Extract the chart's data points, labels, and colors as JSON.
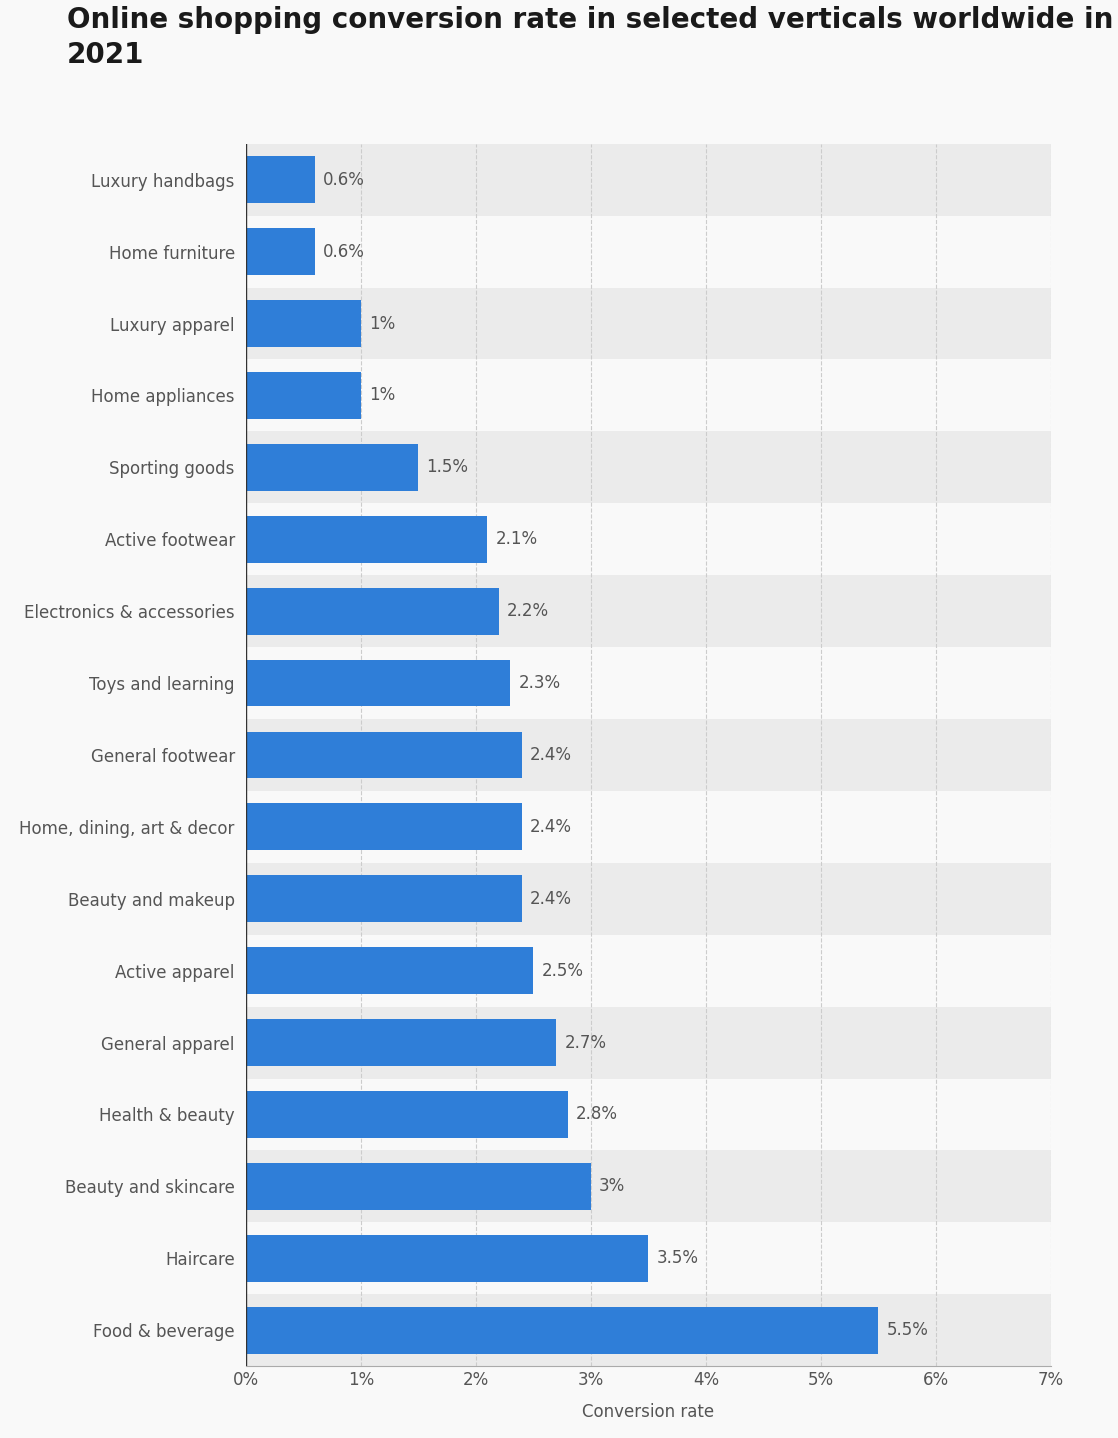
{
  "title": "Online shopping conversion rate in selected verticals worldwide in\n2021",
  "categories": [
    "Luxury handbags",
    "Home furniture",
    "Luxury apparel",
    "Home appliances",
    "Sporting goods",
    "Active footwear",
    "Electronics & accessories",
    "Toys and learning",
    "General footwear",
    "Home, dining, art & decor",
    "Beauty and makeup",
    "Active apparel",
    "General apparel",
    "Health & beauty",
    "Beauty and skincare",
    "Haircare",
    "Food & beverage"
  ],
  "values": [
    0.6,
    0.6,
    1.0,
    1.0,
    1.5,
    2.1,
    2.2,
    2.3,
    2.4,
    2.4,
    2.4,
    2.5,
    2.7,
    2.8,
    3.0,
    3.5,
    5.5
  ],
  "labels": [
    "0.6%",
    "0.6%",
    "1%",
    "1%",
    "1.5%",
    "2.1%",
    "2.2%",
    "2.3%",
    "2.4%",
    "2.4%",
    "2.4%",
    "2.5%",
    "2.7%",
    "2.8%",
    "3%",
    "3.5%",
    "5.5%"
  ],
  "bar_color": "#2f7ed8",
  "background_color": "#f9f9f9",
  "row_colors": [
    "#ebebeb",
    "#f9f9f9"
  ],
  "xlabel": "Conversion rate",
  "xlim": [
    0,
    7
  ],
  "xticks": [
    0,
    1,
    2,
    3,
    4,
    5,
    6,
    7
  ],
  "xtick_labels": [
    "0%",
    "1%",
    "2%",
    "3%",
    "4%",
    "5%",
    "6%",
    "7%"
  ],
  "title_fontsize": 20,
  "label_fontsize": 12,
  "tick_fontsize": 12,
  "xlabel_fontsize": 12
}
